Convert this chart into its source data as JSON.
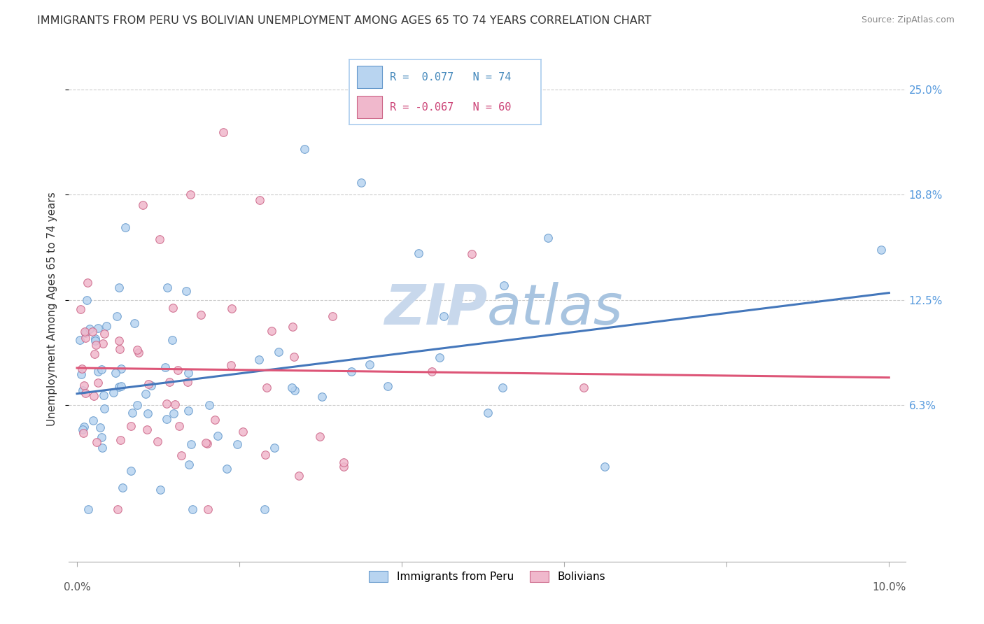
{
  "title": "IMMIGRANTS FROM PERU VS BOLIVIAN UNEMPLOYMENT AMONG AGES 65 TO 74 YEARS CORRELATION CHART",
  "source": "Source: ZipAtlas.com",
  "ylabel": "Unemployment Among Ages 65 to 74 years",
  "xlim": [
    0.0,
    0.1
  ],
  "xticks": [
    0.0,
    0.02,
    0.04,
    0.06,
    0.08,
    0.1
  ],
  "xticklabels": [
    "0.0%",
    "",
    "",
    "",
    "",
    "10.0%"
  ],
  "ytick_positions": [
    0.063,
    0.125,
    0.188,
    0.25
  ],
  "ytick_labels": [
    "6.3%",
    "12.5%",
    "18.8%",
    "25.0%"
  ],
  "color_blue": "#b8d4f0",
  "color_pink": "#f0b8cc",
  "color_blue_edge": "#6699cc",
  "color_pink_edge": "#cc6688",
  "color_line_blue": "#4477bb",
  "color_line_pink": "#dd5577",
  "watermark_color": "#dde8f5",
  "grid_color": "#cccccc",
  "bg_color": "#ffffff",
  "trend_blue_intercept": 0.072,
  "trend_blue_slope": 0.22,
  "trend_pink_intercept": 0.078,
  "trend_pink_slope": -0.18
}
